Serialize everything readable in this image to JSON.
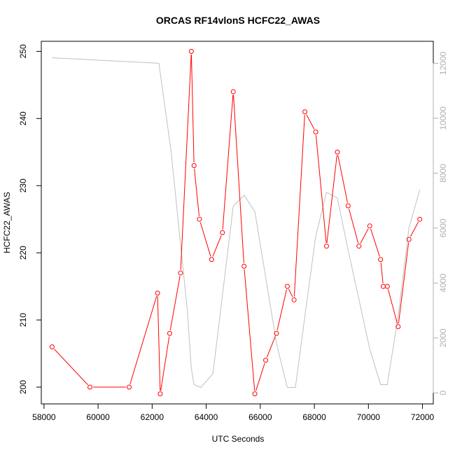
{
  "chart_data": {
    "type": "line",
    "title": "ORCAS RF14vlonS HCFC22_AWAS",
    "xlabel": "UTC Seconds",
    "ylabel": "HCFC22_AWAS",
    "xlim": [
      57900,
      72400
    ],
    "ylim": [
      197.5,
      251.5
    ],
    "y2lim": [
      -400,
      12800
    ],
    "x_ticks": [
      58000,
      60000,
      62000,
      64000,
      66000,
      68000,
      70000,
      72000
    ],
    "y_ticks": [
      200,
      210,
      220,
      230,
      240,
      250
    ],
    "y2_ticks": [
      0,
      2000,
      4000,
      6000,
      8000,
      10000,
      12000
    ],
    "grid": false,
    "legend": "none",
    "series": [
      {
        "axis": "left",
        "color": "#ff0000",
        "marker": "open-circle",
        "x": [
          58300,
          59700,
          61150,
          62200,
          62300,
          62650,
          63050,
          63450,
          63550,
          63750,
          64200,
          64600,
          65000,
          65400,
          65800,
          66200,
          66600,
          67000,
          67250,
          67650,
          68050,
          68450,
          68850,
          69250,
          69650,
          70050,
          70450,
          70550,
          70700,
          71100,
          71500,
          71900
        ],
        "y": [
          206,
          200,
          200,
          214,
          199,
          208,
          217,
          250,
          233,
          225,
          219,
          223,
          244,
          218,
          199,
          204,
          208,
          215,
          213,
          241,
          238,
          221,
          235,
          227,
          221,
          224,
          219,
          215,
          215,
          209,
          222,
          225
        ]
      },
      {
        "axis": "right",
        "color": "#c0c0c0",
        "marker": "none",
        "x": [
          58300,
          62250,
          62700,
          63300,
          63450,
          63550,
          63800,
          64250,
          65000,
          65400,
          65800,
          66200,
          66600,
          67000,
          67300,
          67650,
          68050,
          68450,
          68850,
          69250,
          69650,
          70050,
          70450,
          70700,
          71100,
          71500,
          71900
        ],
        "y": [
          12200,
          12000,
          8800,
          3000,
          900,
          300,
          200,
          700,
          6800,
          7200,
          6600,
          4200,
          1800,
          200,
          200,
          2800,
          5700,
          7300,
          7100,
          5200,
          3400,
          1600,
          300,
          300,
          2800,
          6000,
          7400
        ]
      }
    ]
  }
}
